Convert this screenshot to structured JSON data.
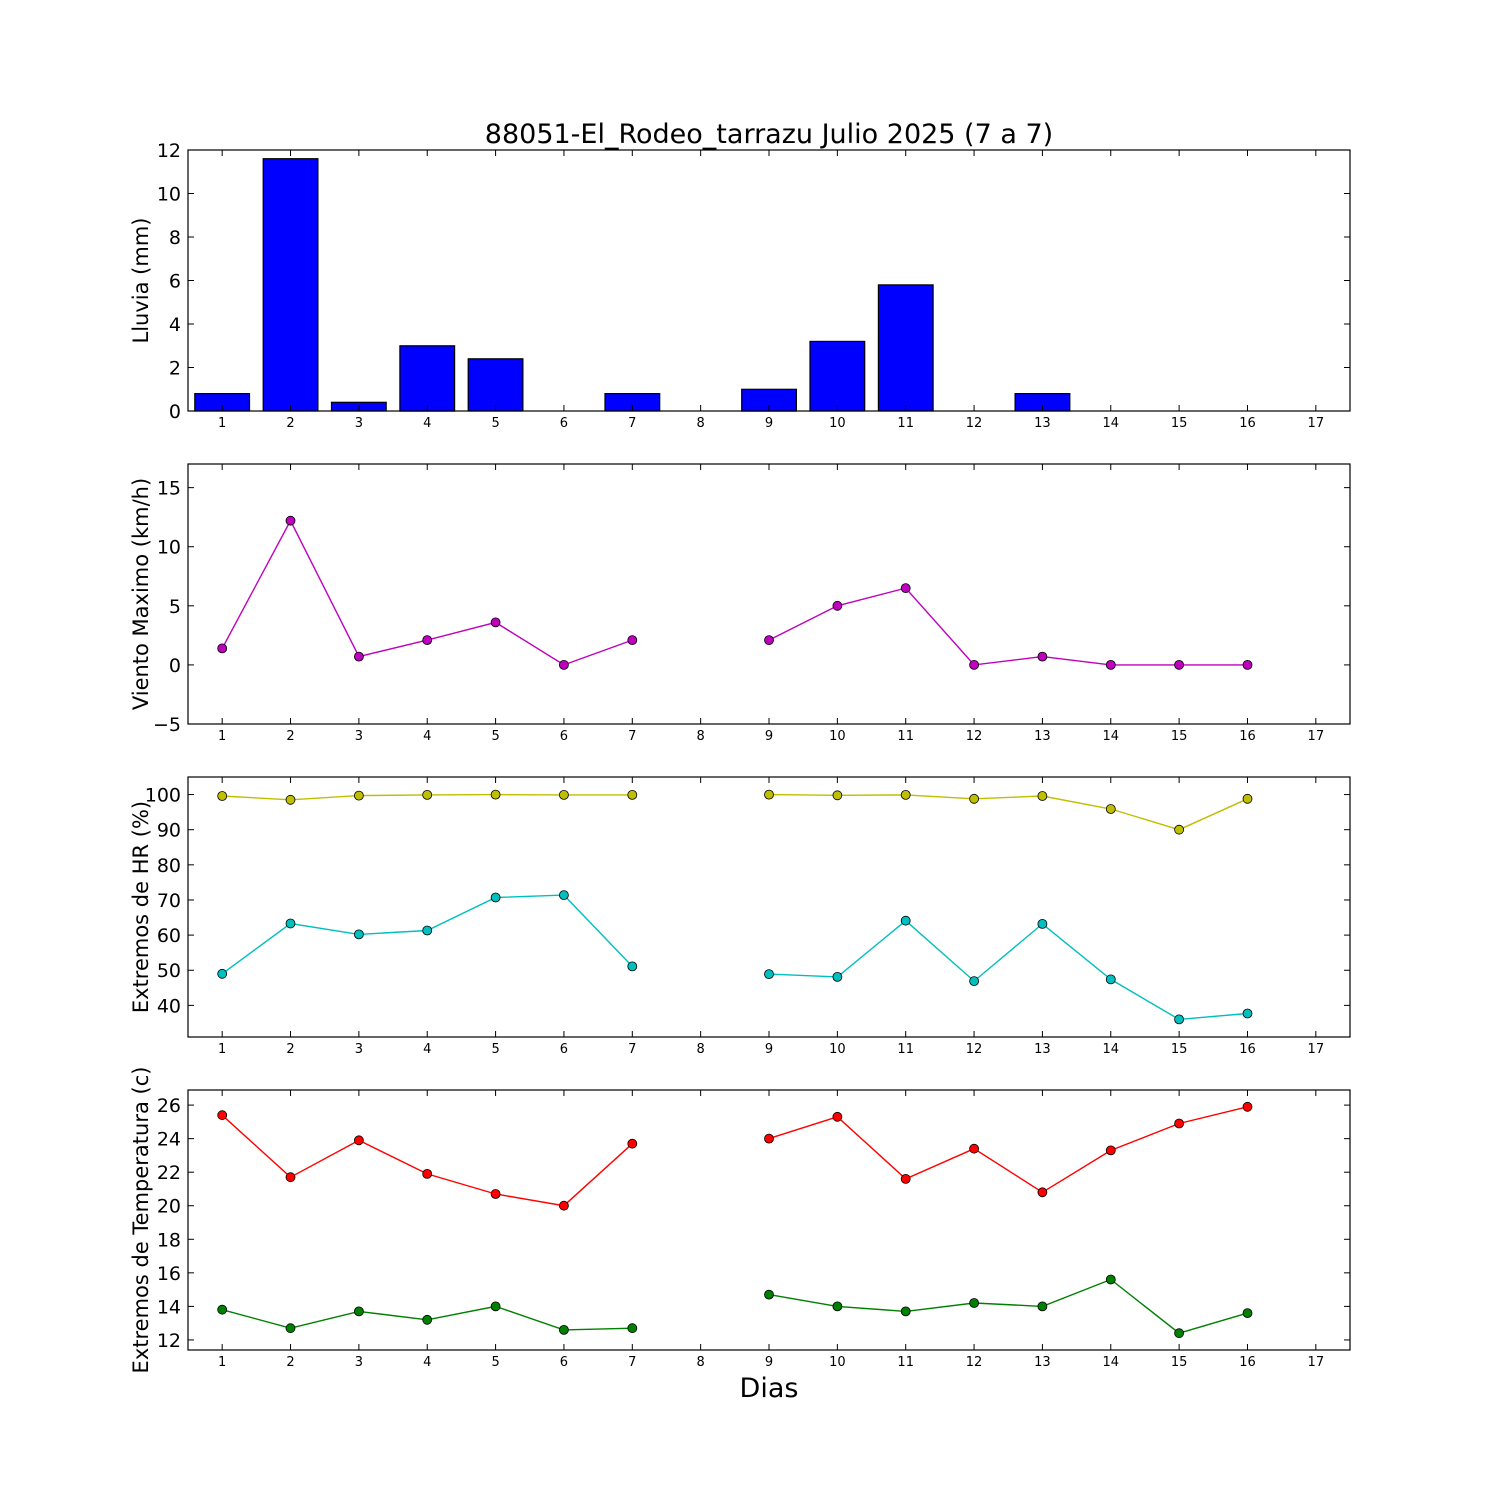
{
  "chart_data": [
    {
      "type": "bar",
      "title": "88051-El_Rodeo_tarrazu Julio 2025  (7 a 7)",
      "ylabel": "Lluvia (mm)",
      "xlabel": "",
      "x": [
        1,
        2,
        3,
        4,
        5,
        6,
        7,
        8,
        9,
        10,
        11,
        12,
        13,
        14,
        15,
        16,
        17
      ],
      "values": [
        0.8,
        11.6,
        0.4,
        3.0,
        2.4,
        0.0,
        0.8,
        null,
        1.0,
        3.2,
        5.8,
        0.0,
        0.8,
        0.0,
        0.0,
        0.0,
        null
      ],
      "xlim": [
        0.5,
        17.5
      ],
      "ylim": [
        0,
        12
      ],
      "yticks": [
        0,
        2,
        4,
        6,
        8,
        10,
        12
      ],
      "xticks": [
        1,
        2,
        3,
        4,
        5,
        6,
        7,
        8,
        9,
        10,
        11,
        12,
        13,
        14,
        15,
        16,
        17
      ],
      "color": "#0000ff",
      "grid": false
    },
    {
      "type": "line",
      "title": "",
      "ylabel": "Viento Maximo (km/h)",
      "xlabel": "",
      "xlim": [
        0.5,
        17.5
      ],
      "ylim": [
        -5,
        17
      ],
      "yticks": [
        -5,
        0,
        5,
        10,
        15
      ],
      "xticks": [
        1,
        2,
        3,
        4,
        5,
        6,
        7,
        8,
        9,
        10,
        11,
        12,
        13,
        14,
        15,
        16,
        17
      ],
      "grid": false,
      "series": [
        {
          "color": "#bf00bf",
          "x": [
            1,
            2,
            3,
            4,
            5,
            6,
            7,
            8,
            9,
            10,
            11,
            12,
            13,
            14,
            15,
            16
          ],
          "values": [
            1.4,
            12.2,
            0.7,
            2.1,
            3.6,
            0.0,
            2.1,
            null,
            2.1,
            5.0,
            6.5,
            0.0,
            0.7,
            0.0,
            0.0,
            0.0
          ]
        }
      ]
    },
    {
      "type": "line",
      "title": "",
      "ylabel": "Extremos de HR (%)",
      "xlabel": "",
      "xlim": [
        0.5,
        17.5
      ],
      "ylim": [
        31,
        105
      ],
      "yticks": [
        40,
        50,
        60,
        70,
        80,
        90,
        100
      ],
      "xticks": [
        1,
        2,
        3,
        4,
        5,
        6,
        7,
        8,
        9,
        10,
        11,
        12,
        13,
        14,
        15,
        16,
        17
      ],
      "grid": false,
      "series": [
        {
          "color": "#bfbf00",
          "x": [
            1,
            2,
            3,
            4,
            5,
            6,
            7,
            8,
            9,
            10,
            11,
            12,
            13,
            14,
            15,
            16
          ],
          "values": [
            99.6,
            98.5,
            99.7,
            99.9,
            100.0,
            99.9,
            99.9,
            null,
            100.0,
            99.8,
            99.9,
            98.8,
            99.6,
            95.9,
            90.0,
            98.8
          ]
        },
        {
          "color": "#00bfbf",
          "x": [
            1,
            2,
            3,
            4,
            5,
            6,
            7,
            8,
            9,
            10,
            11,
            12,
            13,
            14,
            15,
            16
          ],
          "values": [
            49.0,
            63.3,
            60.2,
            61.3,
            70.7,
            71.4,
            51.1,
            null,
            48.9,
            48.1,
            64.1,
            46.9,
            63.2,
            47.4,
            36.0,
            37.7
          ]
        }
      ]
    },
    {
      "type": "line",
      "title": "",
      "ylabel": "Extremos de Temperatura (c)",
      "xlabel": "Dias",
      "xlim": [
        0.5,
        17.5
      ],
      "ylim": [
        11.4,
        26.9
      ],
      "yticks": [
        12,
        14,
        16,
        18,
        20,
        22,
        24,
        26
      ],
      "xticks": [
        1,
        2,
        3,
        4,
        5,
        6,
        7,
        8,
        9,
        10,
        11,
        12,
        13,
        14,
        15,
        16,
        17
      ],
      "grid": false,
      "series": [
        {
          "color": "#ff0000",
          "x": [
            1,
            2,
            3,
            4,
            5,
            6,
            7,
            8,
            9,
            10,
            11,
            12,
            13,
            14,
            15,
            16
          ],
          "values": [
            25.4,
            21.7,
            23.9,
            21.9,
            20.7,
            20.0,
            23.7,
            null,
            24.0,
            25.3,
            21.6,
            23.4,
            20.8,
            23.3,
            24.9,
            25.9
          ]
        },
        {
          "color": "#008000",
          "x": [
            1,
            2,
            3,
            4,
            5,
            6,
            7,
            8,
            9,
            10,
            11,
            12,
            13,
            14,
            15,
            16
          ],
          "values": [
            13.8,
            12.7,
            13.7,
            13.2,
            14.0,
            12.6,
            12.7,
            null,
            14.7,
            14.0,
            13.7,
            14.2,
            14.0,
            15.6,
            12.4,
            13.6
          ]
        }
      ]
    }
  ]
}
